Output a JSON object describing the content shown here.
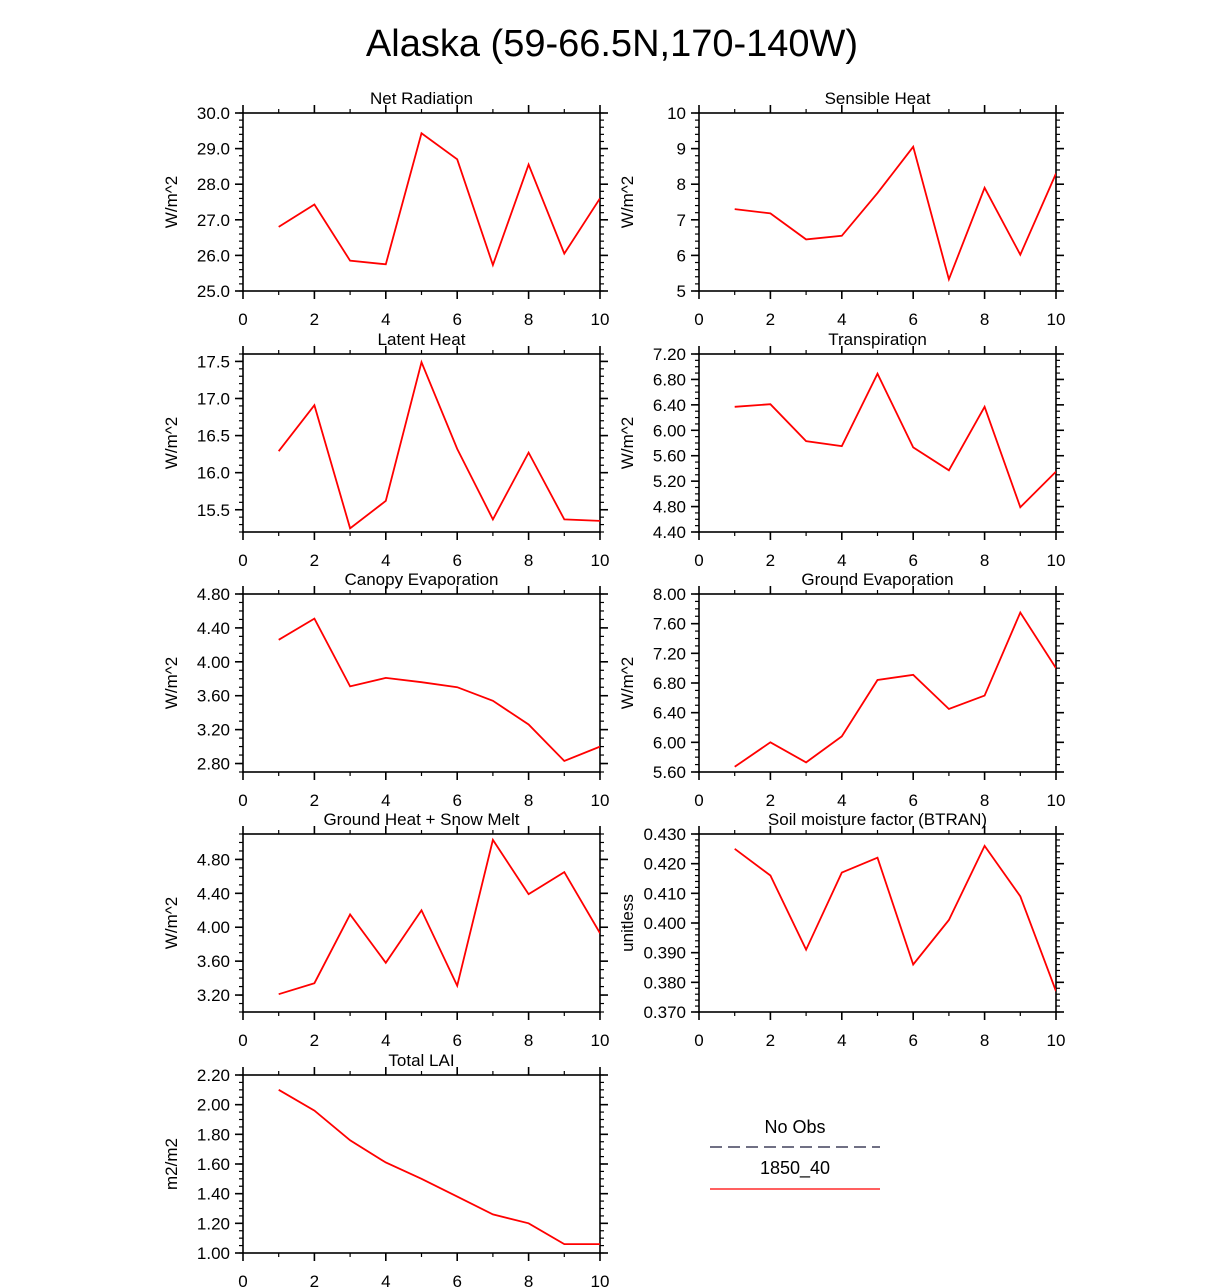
{
  "figure": {
    "title": "Alaska (59-66.5N,170-140W)"
  },
  "legend": {
    "items": [
      {
        "label": "No Obs",
        "style": "dashed",
        "color": "#1a1a3a"
      },
      {
        "label": "1850_40",
        "style": "solid",
        "color": "#ff0000"
      }
    ]
  },
  "line_color": "#ff0000",
  "chart_data": [
    {
      "type": "line",
      "id": "net-radiation",
      "title": "Net Radiation",
      "ylabel": "W/m^2",
      "xlim": [
        0,
        10
      ],
      "xticks": [
        "0",
        "2",
        "4",
        "6",
        "8",
        "10"
      ],
      "ylim": [
        25,
        30
      ],
      "yticks": [
        25,
        26,
        27,
        28,
        29,
        30
      ],
      "yticklabels": [
        "25.0",
        "26.0",
        "27.0",
        "28.0",
        "29.0",
        "30.0"
      ],
      "yminor": 5,
      "x": [
        1,
        2,
        3,
        4,
        5,
        6,
        7,
        8,
        9,
        10
      ],
      "series": [
        {
          "name": "1850_40",
          "values": [
            26.8,
            27.43,
            25.85,
            25.75,
            29.43,
            28.7,
            25.73,
            28.55,
            26.05,
            27.6
          ]
        }
      ]
    },
    {
      "type": "line",
      "id": "sensible-heat",
      "title": "Sensible Heat",
      "ylabel": "W/m^2",
      "xlim": [
        0,
        10
      ],
      "xticks": [
        "0",
        "2",
        "4",
        "6",
        "8",
        "10"
      ],
      "ylim": [
        5,
        10
      ],
      "yticks": [
        5,
        6,
        7,
        8,
        9,
        10
      ],
      "yticklabels": [
        "5",
        "6",
        "7",
        "8",
        "9",
        "10"
      ],
      "yminor": 5,
      "x": [
        1,
        2,
        3,
        4,
        5,
        6,
        7,
        8,
        9,
        10
      ],
      "series": [
        {
          "name": "1850_40",
          "values": [
            7.3,
            7.18,
            6.45,
            6.55,
            7.75,
            9.05,
            5.33,
            7.9,
            6.02,
            8.3
          ]
        }
      ]
    },
    {
      "type": "line",
      "id": "latent-heat",
      "title": "Latent Heat",
      "ylabel": "W/m^2",
      "xlim": [
        0,
        10
      ],
      "xticks": [
        "0",
        "2",
        "4",
        "6",
        "8",
        "10"
      ],
      "ylim": [
        15.2,
        17.6
      ],
      "yticks": [
        15.5,
        16.0,
        16.5,
        17.0,
        17.5
      ],
      "yticklabels": [
        "15.5",
        "16.0",
        "16.5",
        "17.0",
        "17.5"
      ],
      "yminor": 5,
      "x": [
        1,
        2,
        3,
        4,
        5,
        6,
        7,
        8,
        9,
        10
      ],
      "series": [
        {
          "name": "1850_40",
          "values": [
            16.29,
            16.91,
            15.25,
            15.62,
            17.49,
            16.32,
            15.37,
            16.27,
            15.37,
            15.35
          ]
        }
      ]
    },
    {
      "type": "line",
      "id": "transpiration",
      "title": "Transpiration",
      "ylabel": "W/m^2",
      "xlim": [
        0,
        10
      ],
      "xticks": [
        "0",
        "2",
        "4",
        "6",
        "8",
        "10"
      ],
      "ylim": [
        4.4,
        7.2
      ],
      "yticks": [
        4.4,
        4.8,
        5.2,
        5.6,
        6.0,
        6.4,
        6.8,
        7.2
      ],
      "yticklabels": [
        "4.40",
        "4.80",
        "5.20",
        "5.60",
        "6.00",
        "6.40",
        "6.80",
        "7.20"
      ],
      "yminor": 4,
      "x": [
        1,
        2,
        3,
        4,
        5,
        6,
        7,
        8,
        9,
        10
      ],
      "series": [
        {
          "name": "1850_40",
          "values": [
            6.37,
            6.41,
            5.83,
            5.75,
            6.89,
            5.73,
            5.37,
            6.37,
            4.79,
            5.35
          ]
        }
      ]
    },
    {
      "type": "line",
      "id": "canopy-evaporation",
      "title": "Canopy Evaporation",
      "ylabel": "W/m^2",
      "xlim": [
        0,
        10
      ],
      "xticks": [
        "0",
        "2",
        "4",
        "6",
        "8",
        "10"
      ],
      "ylim": [
        2.7,
        4.8
      ],
      "yticks": [
        2.8,
        3.2,
        3.6,
        4.0,
        4.4,
        4.8
      ],
      "yticklabels": [
        "2.80",
        "3.20",
        "3.60",
        "4.00",
        "4.40",
        "4.80"
      ],
      "yminor": 4,
      "x": [
        1,
        2,
        3,
        4,
        5,
        6,
        7,
        8,
        9,
        10
      ],
      "series": [
        {
          "name": "1850_40",
          "values": [
            4.26,
            4.51,
            3.71,
            3.81,
            3.76,
            3.7,
            3.54,
            3.26,
            2.83,
            3.0
          ]
        }
      ]
    },
    {
      "type": "line",
      "id": "ground-evaporation",
      "title": "Ground Evaporation",
      "ylabel": "W/m^2",
      "xlim": [
        0,
        10
      ],
      "xticks": [
        "0",
        "2",
        "4",
        "6",
        "8",
        "10"
      ],
      "ylim": [
        5.6,
        8.0
      ],
      "yticks": [
        5.6,
        6.0,
        6.4,
        6.8,
        7.2,
        7.6,
        8.0
      ],
      "yticklabels": [
        "5.60",
        "6.00",
        "6.40",
        "6.80",
        "7.20",
        "7.60",
        "8.00"
      ],
      "yminor": 4,
      "x": [
        1,
        2,
        3,
        4,
        5,
        6,
        7,
        8,
        9,
        10
      ],
      "series": [
        {
          "name": "1850_40",
          "values": [
            5.67,
            6.0,
            5.73,
            6.08,
            6.84,
            6.91,
            6.45,
            6.63,
            7.75,
            7.0
          ]
        }
      ]
    },
    {
      "type": "line",
      "id": "ground-heat-snow-melt",
      "title": "Ground Heat + Snow Melt",
      "ylabel": "W/m^2",
      "xlim": [
        0,
        10
      ],
      "xticks": [
        "0",
        "2",
        "4",
        "6",
        "8",
        "10"
      ],
      "ylim": [
        3.0,
        5.1
      ],
      "yticks": [
        3.2,
        3.6,
        4.0,
        4.4,
        4.8
      ],
      "yticklabels": [
        "3.20",
        "3.60",
        "4.00",
        "4.40",
        "4.80"
      ],
      "yminor": 4,
      "x": [
        1,
        2,
        3,
        4,
        5,
        6,
        7,
        8,
        9,
        10
      ],
      "series": [
        {
          "name": "1850_40",
          "values": [
            3.21,
            3.34,
            4.15,
            3.58,
            4.2,
            3.31,
            5.03,
            4.39,
            4.65,
            3.93
          ]
        }
      ]
    },
    {
      "type": "line",
      "id": "soil-moisture-factor",
      "title": "Soil moisture factor (BTRAN)",
      "ylabel": "unitless",
      "xlim": [
        0,
        10
      ],
      "xticks": [
        "0",
        "2",
        "4",
        "6",
        "8",
        "10"
      ],
      "ylim": [
        0.37,
        0.43
      ],
      "yticks": [
        0.37,
        0.38,
        0.39,
        0.4,
        0.41,
        0.42,
        0.43
      ],
      "yticklabels": [
        "0.370",
        "0.380",
        "0.390",
        "0.400",
        "0.410",
        "0.420",
        "0.430"
      ],
      "yminor": 5,
      "x": [
        1,
        2,
        3,
        4,
        5,
        6,
        7,
        8,
        9,
        10
      ],
      "series": [
        {
          "name": "1850_40",
          "values": [
            0.425,
            0.416,
            0.391,
            0.417,
            0.422,
            0.386,
            0.401,
            0.426,
            0.409,
            0.377
          ]
        }
      ]
    },
    {
      "type": "line",
      "id": "total-lai",
      "title": "Total LAI",
      "ylabel": "m2/m2",
      "xlim": [
        0,
        10
      ],
      "xticks": [
        "0",
        "2",
        "4",
        "6",
        "8",
        "10"
      ],
      "ylim": [
        1.0,
        2.2
      ],
      "yticks": [
        1.0,
        1.2,
        1.4,
        1.6,
        1.8,
        2.0,
        2.2
      ],
      "yticklabels": [
        "1.00",
        "1.20",
        "1.40",
        "1.60",
        "1.80",
        "2.00",
        "2.20"
      ],
      "yminor": 4,
      "x": [
        1,
        2,
        3,
        4,
        5,
        6,
        7,
        8,
        9,
        10
      ],
      "series": [
        {
          "name": "1850_40",
          "values": [
            2.1,
            1.96,
            1.76,
            1.61,
            1.5,
            1.38,
            1.26,
            1.2,
            1.06,
            1.06
          ]
        }
      ]
    }
  ]
}
